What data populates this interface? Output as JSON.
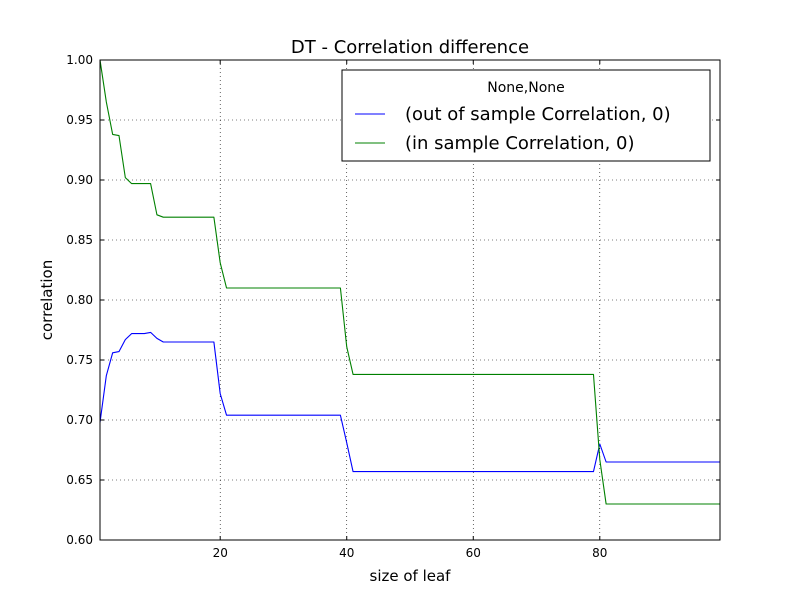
{
  "chart_data": {
    "type": "line",
    "title": "DT - Correlation difference",
    "xlabel": "size of leaf",
    "ylabel": "correlation",
    "xlim": [
      1,
      99
    ],
    "ylim": [
      0.6,
      1.0
    ],
    "xticks": [
      20,
      40,
      60,
      80
    ],
    "yticks": [
      0.6,
      0.65,
      0.7,
      0.75,
      0.8,
      0.85,
      0.9,
      0.95,
      1.0
    ],
    "ytick_labels": [
      "0.60",
      "0.65",
      "0.70",
      "0.75",
      "0.80",
      "0.85",
      "0.90",
      "0.95",
      "1.00"
    ],
    "grid": true,
    "legend": {
      "title": "None,None",
      "placement": "top-right"
    },
    "series": [
      {
        "name": "(out of sample Correlation, 0)",
        "color": "#0000ff",
        "x": [
          1,
          2,
          3,
          4,
          5,
          6,
          7,
          8,
          9,
          10,
          11,
          12,
          19,
          20,
          21,
          39,
          40,
          41,
          79,
          80,
          81,
          99
        ],
        "y": [
          0.698,
          0.737,
          0.756,
          0.757,
          0.767,
          0.772,
          0.772,
          0.772,
          0.773,
          0.768,
          0.765,
          0.765,
          0.765,
          0.722,
          0.704,
          0.704,
          0.681,
          0.657,
          0.657,
          0.68,
          0.665,
          0.665
        ]
      },
      {
        "name": "(in sample Correlation, 0)",
        "color": "#008000",
        "x": [
          1,
          2,
          3,
          4,
          5,
          6,
          7,
          8,
          9,
          10,
          11,
          12,
          19,
          20,
          21,
          39,
          40,
          41,
          79,
          80,
          81,
          99
        ],
        "y": [
          1.0,
          0.965,
          0.938,
          0.937,
          0.902,
          0.897,
          0.897,
          0.897,
          0.897,
          0.871,
          0.869,
          0.869,
          0.869,
          0.831,
          0.81,
          0.81,
          0.761,
          0.738,
          0.738,
          0.667,
          0.63,
          0.63
        ]
      }
    ]
  }
}
